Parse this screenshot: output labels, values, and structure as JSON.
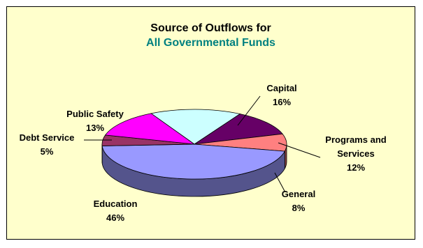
{
  "chart_data": {
    "type": "pie",
    "title": "Source of Outflows for",
    "subtitle": "All Governmental Funds",
    "title_color": "#000000",
    "subtitle_color": "#008080",
    "background": "#ffffcc",
    "slices": [
      {
        "label_lines": [
          "Capital"
        ],
        "percent_label": "16%",
        "value": 16,
        "color": "#ccffff"
      },
      {
        "label_lines": [
          "Programs and",
          "Services"
        ],
        "percent_label": "12%",
        "value": 12,
        "color": "#660066"
      },
      {
        "label_lines": [
          "General"
        ],
        "percent_label": "8%",
        "value": 8,
        "color": "#ff8080"
      },
      {
        "label_lines": [
          "Education"
        ],
        "percent_label": "46%",
        "value": 46,
        "color": "#9999ff"
      },
      {
        "label_lines": [
          "Debt Service"
        ],
        "percent_label": "5%",
        "value": 5,
        "color": "#993366"
      },
      {
        "label_lines": [
          "Public Safety"
        ],
        "percent_label": "13%",
        "value": 13,
        "color": "#ff00ff"
      }
    ]
  }
}
